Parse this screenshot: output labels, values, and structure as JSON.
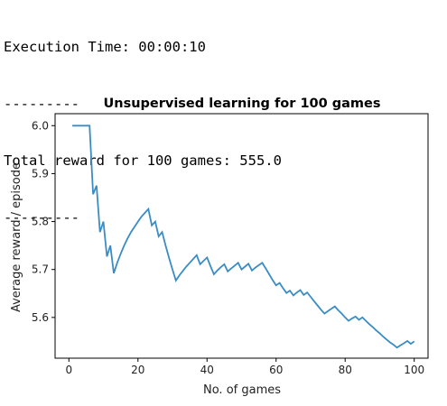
{
  "console": {
    "lines": [
      "Execution Time: 00:00:10",
      "---------",
      "Total reward for 100 games: 555.0",
      "---------"
    ]
  },
  "chart_data": {
    "type": "line",
    "title": "Unsupervised learning for 100 games",
    "xlabel": "No. of games",
    "ylabel": "Average reward / episode",
    "xlim": [
      -4,
      104
    ],
    "ylim": [
      5.515,
      6.025
    ],
    "xticks": [
      0,
      20,
      40,
      60,
      80,
      100
    ],
    "yticks": [
      5.6,
      5.7,
      5.8,
      5.9,
      6.0
    ],
    "ytick_labels": [
      "5.6",
      "5.7",
      "5.8",
      "5.9",
      "6.0"
    ],
    "grid": false,
    "line_color": "#3a8dc4",
    "series": [
      {
        "x": [
          1,
          2,
          3,
          4,
          5,
          6,
          7,
          8,
          9,
          10,
          11,
          12,
          13,
          14,
          15,
          16,
          17,
          18,
          19,
          20,
          21,
          22,
          23,
          24,
          25,
          26,
          27,
          28,
          29,
          30,
          31,
          32,
          33,
          34,
          35,
          36,
          37,
          38,
          39,
          40,
          41,
          42,
          43,
          44,
          45,
          46,
          47,
          48,
          49,
          50,
          51,
          52,
          53,
          54,
          55,
          56,
          57,
          58,
          59,
          60,
          61,
          62,
          63,
          64,
          65,
          66,
          67,
          68,
          69,
          70,
          71,
          72,
          73,
          74,
          75,
          76,
          77,
          78,
          79,
          80,
          81,
          82,
          83,
          84,
          85,
          86,
          87,
          88,
          89,
          90,
          91,
          92,
          93,
          94,
          95,
          96,
          97,
          98,
          99,
          100
        ],
        "values": [
          6.0,
          6.0,
          6.0,
          6.0,
          6.0,
          6.0,
          5.857,
          5.875,
          5.778,
          5.8,
          5.727,
          5.75,
          5.692,
          5.714,
          5.733,
          5.75,
          5.765,
          5.778,
          5.789,
          5.8,
          5.81,
          5.818,
          5.826,
          5.792,
          5.8,
          5.769,
          5.778,
          5.75,
          5.724,
          5.7,
          5.677,
          5.688,
          5.697,
          5.706,
          5.714,
          5.722,
          5.73,
          5.711,
          5.718,
          5.725,
          5.707,
          5.69,
          5.698,
          5.705,
          5.711,
          5.696,
          5.702,
          5.708,
          5.714,
          5.7,
          5.706,
          5.712,
          5.698,
          5.704,
          5.709,
          5.714,
          5.702,
          5.69,
          5.678,
          5.667,
          5.672,
          5.661,
          5.651,
          5.656,
          5.646,
          5.652,
          5.657,
          5.647,
          5.652,
          5.643,
          5.634,
          5.625,
          5.616,
          5.608,
          5.613,
          5.618,
          5.623,
          5.615,
          5.608,
          5.6,
          5.593,
          5.598,
          5.602,
          5.595,
          5.6,
          5.593,
          5.586,
          5.58,
          5.573,
          5.567,
          5.56,
          5.554,
          5.548,
          5.543,
          5.537,
          5.542,
          5.546,
          5.551,
          5.545,
          5.55
        ]
      }
    ]
  }
}
